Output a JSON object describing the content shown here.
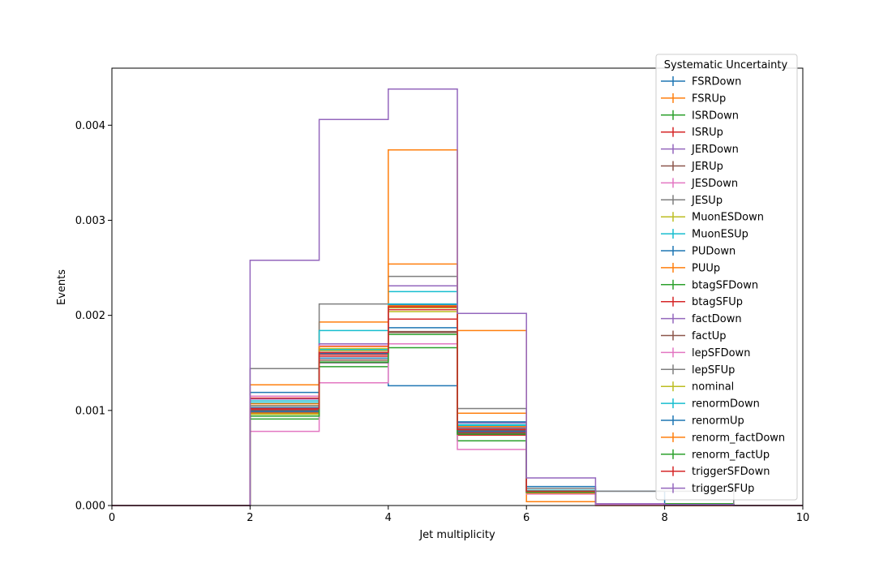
{
  "chart_data": {
    "type": "line",
    "title": "",
    "xlabel": "Jet multiplicity",
    "ylabel": "Events",
    "xlim": [
      0,
      10
    ],
    "ylim": [
      0,
      0.0046
    ],
    "xticks": [
      "0",
      "2",
      "4",
      "6",
      "8",
      "10"
    ],
    "yticks": [
      "0.000",
      "0.001",
      "0.002",
      "0.003",
      "0.004"
    ],
    "bin_edges": [
      0,
      1,
      2,
      3,
      4,
      5,
      6,
      7,
      8,
      9,
      10
    ],
    "grid": false,
    "legend": {
      "title": "Systematic Uncertainty",
      "placement": "right"
    },
    "series": [
      {
        "name": "FSRDown",
        "color": "#1f77b4",
        "values": [
          0,
          0,
          0.00119,
          0.00155,
          0.00126,
          0.00084,
          0.00014,
          0.00015,
          2e-05,
          0
        ]
      },
      {
        "name": "FSRUp",
        "color": "#ff7f0e",
        "values": [
          0,
          0,
          0.00127,
          0.00193,
          0.00374,
          0.00184,
          4e-05,
          0,
          0,
          0
        ]
      },
      {
        "name": "ISRDown",
        "color": "#2ca02c",
        "values": [
          0,
          0,
          0.00091,
          0.00146,
          0.00166,
          0.00068,
          0.00013,
          2e-05,
          2e-05,
          0
        ]
      },
      {
        "name": "ISRUp",
        "color": "#d62728",
        "values": [
          0,
          0,
          0.00101,
          0.00159,
          0.00196,
          0.00074,
          0.00015,
          2e-05,
          0,
          0
        ]
      },
      {
        "name": "JERDown",
        "color": "#9467bd",
        "values": [
          0,
          0,
          0.00112,
          0.00163,
          0.00231,
          0.00087,
          0.00016,
          2e-05,
          1e-05,
          0
        ]
      },
      {
        "name": "JERUp",
        "color": "#8c564b",
        "values": [
          0,
          0,
          0.00098,
          0.00161,
          0.00182,
          0.00079,
          0.00014,
          2e-05,
          1e-05,
          0
        ]
      },
      {
        "name": "JESDown",
        "color": "#e377c2",
        "values": [
          0,
          0,
          0.00078,
          0.00129,
          0.0017,
          0.00059,
          0.00012,
          1e-05,
          1e-05,
          0
        ]
      },
      {
        "name": "JESUp",
        "color": "#7f7f7f",
        "values": [
          0,
          0,
          0.00144,
          0.00212,
          0.00241,
          0.00102,
          0.00018,
          0.00015,
          0.00015,
          0
        ]
      },
      {
        "name": "MuonESDown",
        "color": "#bcbd22",
        "values": [
          0,
          0,
          0.00105,
          0.00163,
          0.00204,
          0.00081,
          0.00015,
          2e-05,
          1e-05,
          0
        ]
      },
      {
        "name": "MuonESUp",
        "color": "#17becf",
        "values": [
          0,
          0,
          0.0011,
          0.00184,
          0.00225,
          0.00085,
          0.00016,
          2e-05,
          1e-05,
          0
        ]
      },
      {
        "name": "PUDown",
        "color": "#1f77b4",
        "values": [
          0,
          0,
          0.00103,
          0.0016,
          0.00211,
          0.00088,
          0.0002,
          2e-05,
          1e-05,
          0
        ]
      },
      {
        "name": "PUUp",
        "color": "#ff7f0e",
        "values": [
          0,
          0,
          0.00097,
          0.00167,
          0.00254,
          0.00097,
          0.00013,
          2e-05,
          1e-05,
          0
        ]
      },
      {
        "name": "btagSFDown",
        "color": "#2ca02c",
        "values": [
          0,
          0,
          0.00096,
          0.00165,
          0.0021,
          0.00081,
          0.00015,
          2e-05,
          1e-05,
          0
        ]
      },
      {
        "name": "btagSFUp",
        "color": "#d62728",
        "values": [
          0,
          0,
          0.00113,
          0.00157,
          0.00206,
          0.00077,
          0.00014,
          2e-05,
          1e-05,
          0
        ]
      },
      {
        "name": "factDown",
        "color": "#9467bd",
        "values": [
          0,
          0,
          0.00102,
          0.0017,
          0.00209,
          0.00082,
          0.00015,
          2e-05,
          1e-05,
          0
        ]
      },
      {
        "name": "factUp",
        "color": "#8c564b",
        "values": [
          0,
          0,
          0.001,
          0.00153,
          0.00183,
          0.00076,
          0.00014,
          2e-05,
          1e-05,
          0
        ]
      },
      {
        "name": "lepSFDown",
        "color": "#e377c2",
        "values": [
          0,
          0,
          0.00115,
          0.00168,
          0.00212,
          0.00083,
          0.00015,
          2e-05,
          1e-05,
          0
        ]
      },
      {
        "name": "lepSFUp",
        "color": "#7f7f7f",
        "values": [
          0,
          0,
          0.00105,
          0.0015,
          0.00209,
          0.00081,
          0.00014,
          2e-05,
          1e-05,
          0
        ]
      },
      {
        "name": "nominal",
        "color": "#bcbd22",
        "values": [
          0,
          0,
          0.00096,
          0.00165,
          0.00208,
          0.0008,
          0.00015,
          2e-05,
          1e-05,
          0
        ]
      },
      {
        "name": "renormDown",
        "color": "#17becf",
        "values": [
          0,
          0,
          0.00108,
          0.00164,
          0.00212,
          0.00084,
          0.00015,
          2e-05,
          1e-05,
          0
        ]
      },
      {
        "name": "renormUp",
        "color": "#1f77b4",
        "values": [
          0,
          0,
          0.00099,
          0.0016,
          0.00187,
          0.00078,
          0.00014,
          2e-05,
          1e-05,
          0
        ]
      },
      {
        "name": "renorm_factDown",
        "color": "#ff7f0e",
        "values": [
          0,
          0,
          0.00107,
          0.00167,
          0.0021,
          0.00083,
          0.00015,
          2e-05,
          1e-05,
          0
        ]
      },
      {
        "name": "renorm_factUp",
        "color": "#2ca02c",
        "values": [
          0,
          0,
          0.00094,
          0.00151,
          0.0018,
          0.00075,
          0.00014,
          2e-05,
          1e-05,
          0
        ]
      },
      {
        "name": "triggerSFDown",
        "color": "#d62728",
        "values": [
          0,
          0,
          0.00102,
          0.00161,
          0.00209,
          0.0008,
          0.00015,
          2e-05,
          1e-05,
          0
        ]
      },
      {
        "name": "triggerSFUp",
        "color": "#9467bd",
        "values": [
          0,
          0,
          0.00258,
          0.00406,
          0.00438,
          0.00202,
          0.00029,
          2e-05,
          1e-05,
          0
        ]
      }
    ]
  }
}
